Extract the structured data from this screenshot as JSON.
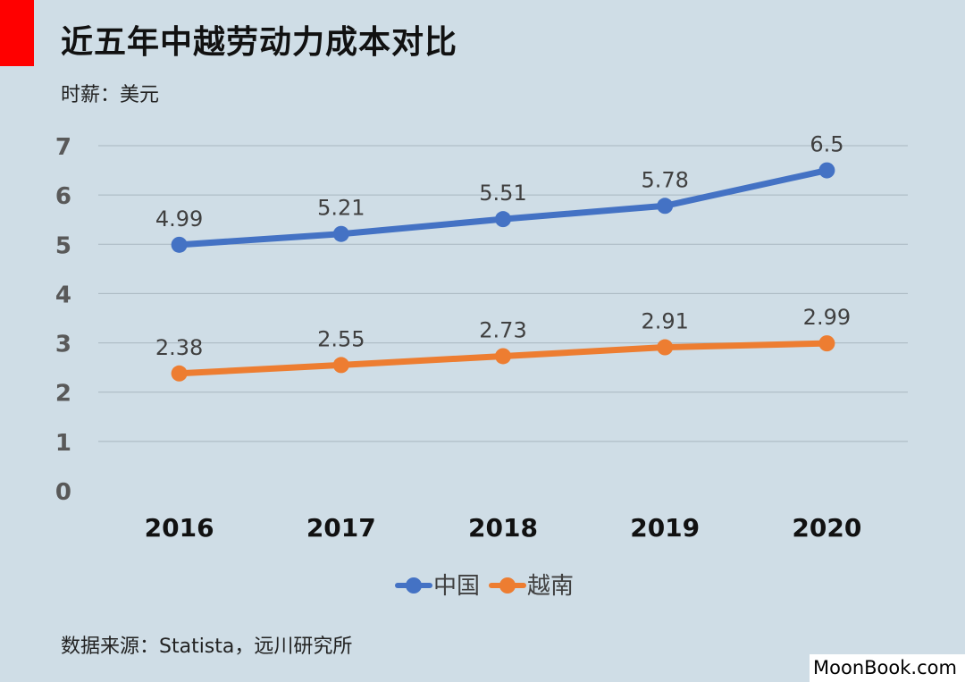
{
  "header": {
    "title": "近五年中越劳动力成本对比",
    "unit_label": "时薪：美元"
  },
  "footer": {
    "source": "数据来源：Statista，远川研究所",
    "watermark": "MoonBook.com"
  },
  "chart_data": {
    "type": "line",
    "categories": [
      "2016",
      "2017",
      "2018",
      "2019",
      "2020"
    ],
    "series": [
      {
        "name": "中国",
        "color": "#4472c4",
        "values": [
          4.99,
          5.21,
          5.51,
          5.78,
          6.5
        ],
        "labels": [
          "4.99",
          "5.21",
          "5.51",
          "5.78",
          "6.5"
        ]
      },
      {
        "name": "越南",
        "color": "#ed7d31",
        "values": [
          2.38,
          2.55,
          2.73,
          2.91,
          2.99
        ],
        "labels": [
          "2.38",
          "2.55",
          "2.73",
          "2.91",
          "2.99"
        ]
      }
    ],
    "ylim": [
      0,
      7
    ],
    "yticks": [
      0,
      1,
      2,
      3,
      4,
      5,
      6,
      7
    ],
    "grid": true,
    "legend": "bottom"
  }
}
